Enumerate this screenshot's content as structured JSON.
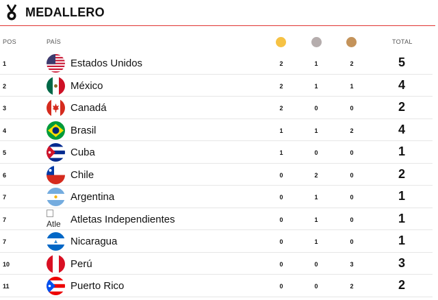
{
  "header": {
    "title": "MEDALLERO",
    "icon": "medal-icon",
    "accent": "#e0322f"
  },
  "columns": {
    "pos": "POS",
    "pais": "PAÍS",
    "total": "TOTAL",
    "gold": "#f6c244",
    "silver": "#b5adad",
    "bronze": "#c4935a"
  },
  "rows": [
    {
      "pos": "1",
      "country": "Estados Unidos",
      "flag": "usa-flag-icon",
      "gold": "2",
      "silver": "1",
      "bronze": "2",
      "total": "5"
    },
    {
      "pos": "2",
      "country": "México",
      "flag": "mexico-flag-icon",
      "gold": "2",
      "silver": "1",
      "bronze": "1",
      "total": "4"
    },
    {
      "pos": "3",
      "country": "Canadá",
      "flag": "canada-flag-icon",
      "gold": "2",
      "silver": "0",
      "bronze": "0",
      "total": "2"
    },
    {
      "pos": "4",
      "country": "Brasil",
      "flag": "brazil-flag-icon",
      "gold": "1",
      "silver": "1",
      "bronze": "2",
      "total": "4"
    },
    {
      "pos": "5",
      "country": "Cuba",
      "flag": "cuba-flag-icon",
      "gold": "1",
      "silver": "0",
      "bronze": "0",
      "total": "1"
    },
    {
      "pos": "6",
      "country": "Chile",
      "flag": "chile-flag-icon",
      "gold": "0",
      "silver": "2",
      "bronze": "0",
      "total": "2"
    },
    {
      "pos": "7",
      "country": "Argentina",
      "flag": "argentina-flag-icon",
      "gold": "0",
      "silver": "1",
      "bronze": "0",
      "total": "1"
    },
    {
      "pos": "7",
      "country": "Atletas Independientes",
      "flag": "broken-image-icon",
      "flag_alt": "Atle",
      "gold": "0",
      "silver": "1",
      "bronze": "0",
      "total": "1"
    },
    {
      "pos": "7",
      "country": "Nicaragua",
      "flag": "nicaragua-flag-icon",
      "gold": "0",
      "silver": "1",
      "bronze": "0",
      "total": "1"
    },
    {
      "pos": "10",
      "country": "Perú",
      "flag": "peru-flag-icon",
      "gold": "0",
      "silver": "0",
      "bronze": "3",
      "total": "3"
    },
    {
      "pos": "11",
      "country": "Puerto Rico",
      "flag": "puerto-rico-flag-icon",
      "gold": "0",
      "silver": "0",
      "bronze": "2",
      "total": "2"
    }
  ]
}
